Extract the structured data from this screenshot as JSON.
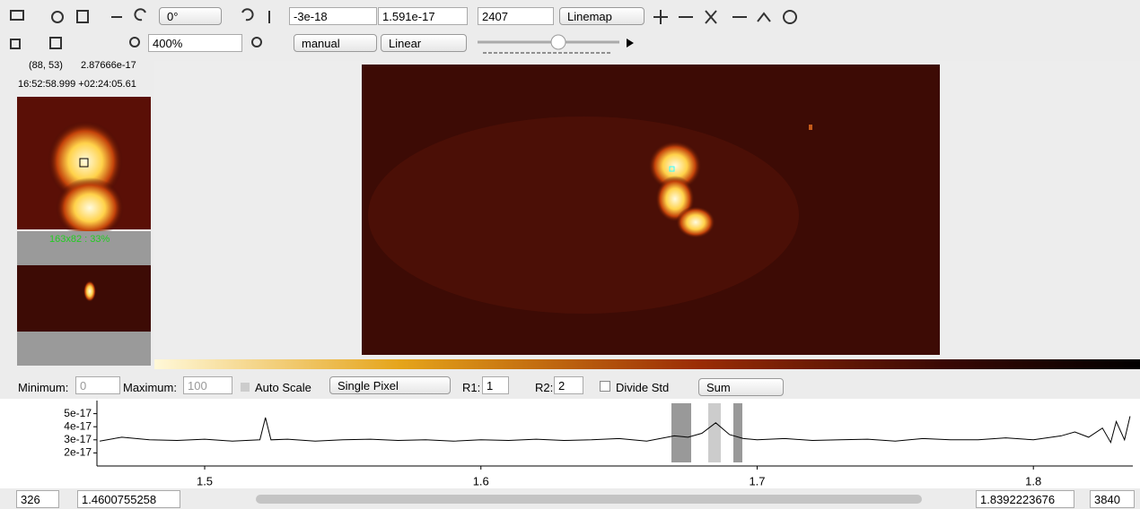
{
  "toolbar": {
    "rotation": "0°",
    "min": "-3e-18",
    "max": "1.591e-17",
    "frame": "2407",
    "mode": "Linemap",
    "zoom": "400%",
    "scale_mode": "manual",
    "scale_type": "Linear"
  },
  "cursor": {
    "pixel": "(88, 53)",
    "value": "2.87666e-17",
    "coords": "16:52:58.999 +02:24:05.61",
    "overview": "163x82 : 33%"
  },
  "spectrum_controls": {
    "min_label": "Minimum:",
    "min": "0",
    "max_label": "Maximum:",
    "max": "100",
    "auto_scale": "Auto Scale",
    "extraction": "Single Pixel",
    "r1_label": "R1:",
    "r1": "1",
    "r2_label": "R2:",
    "r2": "2",
    "divide_std": "Divide Std",
    "combine": "Sum"
  },
  "chart_data": {
    "type": "line",
    "x": [
      1.462,
      1.47,
      1.48,
      1.49,
      1.5,
      1.51,
      1.52,
      1.522,
      1.524,
      1.53,
      1.54,
      1.55,
      1.56,
      1.57,
      1.58,
      1.59,
      1.6,
      1.61,
      1.62,
      1.63,
      1.64,
      1.65,
      1.66,
      1.67,
      1.675,
      1.68,
      1.685,
      1.69,
      1.695,
      1.7,
      1.71,
      1.72,
      1.73,
      1.74,
      1.75,
      1.76,
      1.77,
      1.78,
      1.79,
      1.8,
      1.81,
      1.815,
      1.82,
      1.825,
      1.828,
      1.83,
      1.833,
      1.835
    ],
    "series": [
      {
        "color": "#000000",
        "values": [
          2.9e-17,
          3.2e-17,
          3e-17,
          2.95e-17,
          3.05e-17,
          2.9e-17,
          3e-17,
          4.7e-17,
          3e-17,
          3.05e-17,
          2.9e-17,
          3e-17,
          3.05e-17,
          2.95e-17,
          3e-17,
          2.9e-17,
          3e-17,
          2.95e-17,
          3.05e-17,
          2.95e-17,
          3e-17,
          3.1e-17,
          2.9e-17,
          3.3e-17,
          3.2e-17,
          3.5e-17,
          4.3e-17,
          3.4e-17,
          3.1e-17,
          3e-17,
          3.1e-17,
          2.95e-17,
          3e-17,
          3.05e-17,
          2.9e-17,
          3.1e-17,
          3e-17,
          3e-17,
          3.15e-17,
          3e-17,
          3.3e-17,
          3.6e-17,
          3.2e-17,
          3.9e-17,
          2.8e-17,
          4.4e-17,
          3e-17,
          4.8e-17
        ]
      }
    ],
    "xlim": [
      1.461,
      1.836
    ],
    "ylim": [
      1e-17,
      6e-17
    ],
    "xticks": [
      1.5,
      1.6,
      1.7,
      1.8
    ],
    "yticks": [
      5e-17,
      4e-17,
      3e-17,
      2e-17
    ]
  },
  "status": {
    "start_channel": "326",
    "start_wave": "1.4600755258",
    "end_wave": "1.8392223676",
    "end_channel": "3840"
  }
}
